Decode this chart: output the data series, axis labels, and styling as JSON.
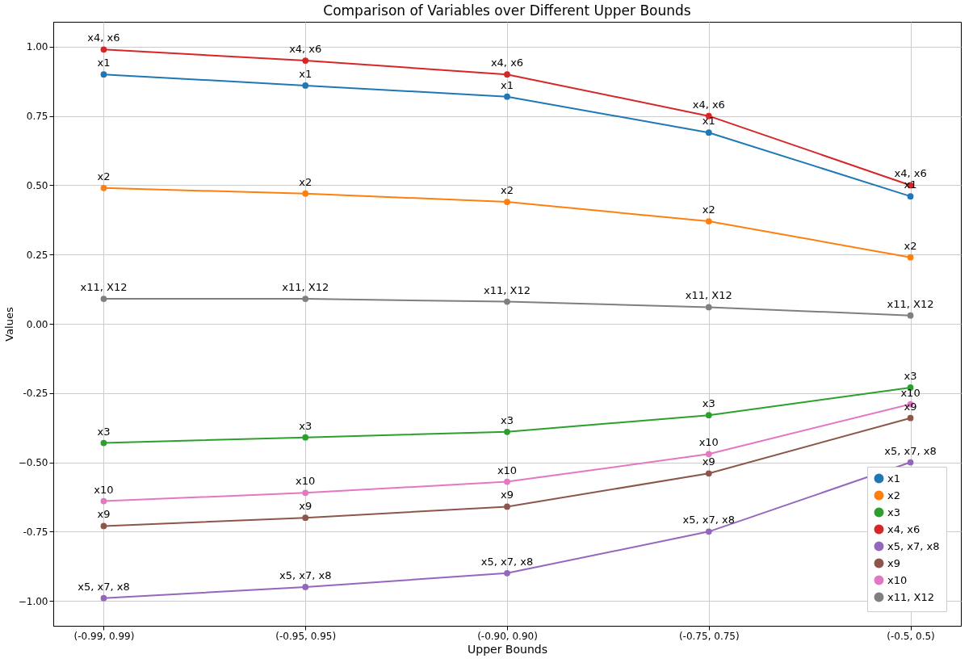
{
  "chart_data": {
    "type": "line",
    "title": "Comparison of Variables over Different Upper Bounds",
    "xlabel": "Upper Bounds",
    "ylabel": "Values",
    "categories": [
      "(-0.99, 0.99)",
      "(-0.95, 0.95)",
      "(-0.90, 0.90)",
      "(-0.75, 0.75)",
      "(-0.5, 0.5)"
    ],
    "series": [
      {
        "name": "x1",
        "color": "#1f77b4",
        "values": [
          0.9,
          0.86,
          0.82,
          0.69,
          0.46
        ]
      },
      {
        "name": "x2",
        "color": "#ff7f0e",
        "values": [
          0.49,
          0.47,
          0.44,
          0.37,
          0.24
        ]
      },
      {
        "name": "x3",
        "color": "#2ca02c",
        "values": [
          -0.43,
          -0.41,
          -0.39,
          -0.33,
          -0.23
        ]
      },
      {
        "name": "x4, x6",
        "color": "#d62728",
        "values": [
          0.99,
          0.95,
          0.9,
          0.75,
          0.5
        ]
      },
      {
        "name": "x5, x7, x8",
        "color": "#9467bd",
        "values": [
          -0.99,
          -0.95,
          -0.9,
          -0.75,
          -0.5
        ]
      },
      {
        "name": "x9",
        "color": "#8c564b",
        "values": [
          -0.73,
          -0.7,
          -0.66,
          -0.54,
          -0.34
        ]
      },
      {
        "name": "x10",
        "color": "#e377c2",
        "values": [
          -0.64,
          -0.61,
          -0.57,
          -0.47,
          -0.29
        ]
      },
      {
        "name": "x11, X12",
        "color": "#7f7f7f",
        "values": [
          0.09,
          0.09,
          0.08,
          0.06,
          0.03
        ]
      }
    ],
    "ylim": [
      -1.09,
      1.09
    ],
    "yticks": [
      {
        "value": -1,
        "label": "−1.00"
      },
      -0.75,
      {
        "value": -0.5,
        "label": "−0.50"
      },
      -0.25,
      {
        "value": 0,
        "label": "0.00"
      },
      0.25,
      {
        "value": 0.5,
        "label": "0.50"
      },
      0.75,
      {
        "value": 1,
        "label": "1.00"
      }
    ],
    "grid": true,
    "legend": "bottom right",
    "marker": "circle",
    "line_style": "solid"
  }
}
